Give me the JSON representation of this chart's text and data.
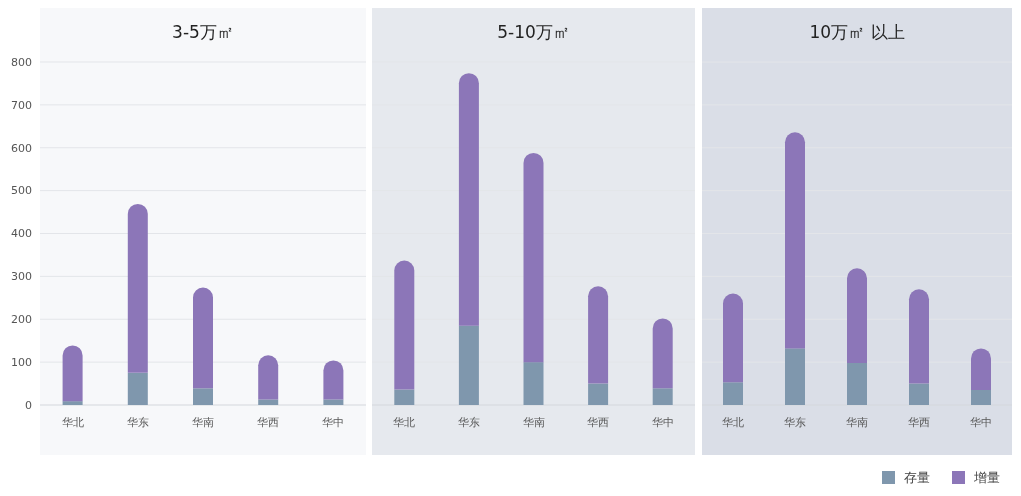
{
  "chart_data": [
    {
      "type": "bar",
      "title": "3-5万㎡",
      "categories": [
        "华北",
        "华东",
        "华南",
        "华西",
        "华中"
      ],
      "stacked": true,
      "ylim": [
        0,
        800
      ],
      "yticks": [
        0,
        100,
        200,
        300,
        400,
        500,
        600,
        700,
        800
      ],
      "grid": "y",
      "series": [
        {
          "color": "#7f97ad",
          "values": [
            9,
            75,
            39,
            13,
            13
          ]
        },
        {
          "color": "#8c76b8",
          "values": [
            130,
            394,
            235,
            103,
            91
          ]
        }
      ]
    },
    {
      "type": "bar",
      "title": "5-10万㎡",
      "categories": [
        "华北",
        "华东",
        "华南",
        "华西",
        "华中"
      ],
      "stacked": true,
      "ylim": [
        0,
        800
      ],
      "yticks": [
        0,
        100,
        200,
        300,
        400,
        500,
        600,
        700,
        800
      ],
      "grid": "y",
      "tick_labels": "x",
      "series": [
        {
          "color": "#7f97ad",
          "values": [
            36,
            185,
            100,
            50,
            39
          ]
        },
        {
          "color": "#8c76b8",
          "values": [
            301,
            589,
            488,
            227,
            163
          ]
        }
      ]
    },
    {
      "type": "bar",
      "title": "10万㎡ 以上",
      "categories": [
        "华北",
        "华东",
        "华南",
        "华西",
        "华中"
      ],
      "stacked": true,
      "ylim": [
        0,
        800
      ],
      "yticks": [
        0,
        100,
        200,
        300,
        400,
        500,
        600,
        700,
        800
      ],
      "grid": "y",
      "tick_labels": "x",
      "legend": "bottom right",
      "series": [
        {
          "name": "存量",
          "color": "#7f97ad",
          "values": [
            53,
            132,
            98,
            50,
            35
          ]
        },
        {
          "name": "增量",
          "color": "#8c76b8",
          "values": [
            207,
            504,
            221,
            220,
            97
          ]
        }
      ]
    }
  ]
}
